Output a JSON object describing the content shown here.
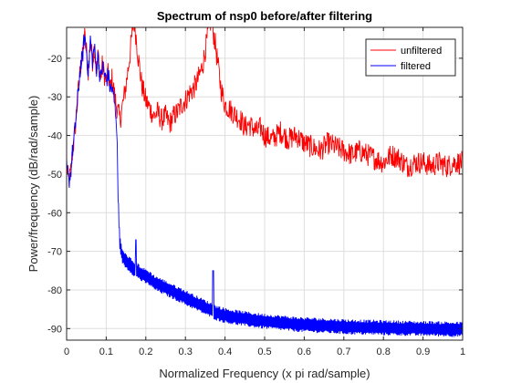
{
  "chart_data": {
    "type": "line",
    "title": "Spectrum of nsp0 before/after filtering",
    "xlabel": "Normalized Frequency (x pi rad/sample)",
    "ylabel": "Power/frequency (dB/rad/sample)",
    "xlim": [
      0,
      1
    ],
    "ylim": [
      -93,
      -12
    ],
    "xticks": [
      0,
      0.1,
      0.2,
      0.3,
      0.4,
      0.5,
      0.6,
      0.7,
      0.8,
      0.9,
      1
    ],
    "xtick_labels": [
      "0",
      "0.1",
      "0.2",
      "0.3",
      "0.4",
      "0.5",
      "0.6",
      "0.7",
      "0.8",
      "0.9",
      "1"
    ],
    "yticks": [
      -90,
      -80,
      -70,
      -60,
      -50,
      -40,
      -30,
      -20
    ],
    "ytick_labels": [
      "-90",
      "-80",
      "-70",
      "-60",
      "-50",
      "-40",
      "-30",
      "-20"
    ],
    "grid": true,
    "legend_position": "top-right",
    "series": [
      {
        "name": "unfiltered",
        "color": "#ff0000",
        "x": [
          0,
          0.005,
          0.01,
          0.015,
          0.02,
          0.025,
          0.03,
          0.035,
          0.04,
          0.045,
          0.05,
          0.055,
          0.06,
          0.065,
          0.07,
          0.075,
          0.08,
          0.085,
          0.09,
          0.095,
          0.1,
          0.105,
          0.11,
          0.115,
          0.12,
          0.125,
          0.13,
          0.135,
          0.14,
          0.145,
          0.15,
          0.155,
          0.16,
          0.165,
          0.17,
          0.175,
          0.18,
          0.185,
          0.19,
          0.195,
          0.2,
          0.21,
          0.22,
          0.23,
          0.24,
          0.25,
          0.26,
          0.27,
          0.28,
          0.29,
          0.3,
          0.31,
          0.32,
          0.33,
          0.34,
          0.345,
          0.35,
          0.355,
          0.36,
          0.365,
          0.37,
          0.375,
          0.38,
          0.385,
          0.39,
          0.395,
          0.4,
          0.41,
          0.42,
          0.43,
          0.44,
          0.45,
          0.46,
          0.47,
          0.48,
          0.49,
          0.5,
          0.52,
          0.54,
          0.56,
          0.58,
          0.6,
          0.62,
          0.64,
          0.66,
          0.68,
          0.7,
          0.72,
          0.74,
          0.76,
          0.78,
          0.8,
          0.82,
          0.84,
          0.86,
          0.88,
          0.9,
          0.92,
          0.94,
          0.96,
          0.98,
          1
        ],
        "y": [
          -48,
          -52,
          -50,
          -44,
          -40,
          -34,
          -28,
          -22,
          -20,
          -14,
          -18,
          -24,
          -15,
          -21,
          -17,
          -23,
          -19,
          -26,
          -22,
          -24,
          -26,
          -24,
          -28,
          -25,
          -29,
          -32,
          -34,
          -36,
          -33,
          -30,
          -27,
          -23,
          -19,
          -14,
          -10,
          -14,
          -19,
          -23,
          -27,
          -29,
          -31,
          -33,
          -35,
          -34,
          -36,
          -35,
          -37,
          -35,
          -34,
          -32,
          -31,
          -29,
          -28,
          -26,
          -23,
          -21,
          -18,
          -15,
          -12,
          -10,
          -13,
          -16,
          -20,
          -24,
          -28,
          -30,
          -32,
          -33,
          -34,
          -35,
          -36,
          -38,
          -37,
          -38,
          -39,
          -38,
          -40,
          -41,
          -39,
          -41,
          -40,
          -42,
          -43,
          -44,
          -42,
          -43,
          -44,
          -45,
          -44,
          -45,
          -46,
          -47,
          -45,
          -46,
          -48,
          -47,
          -47,
          -48,
          -47,
          -48,
          -47,
          -47
        ]
      },
      {
        "name": "filtered",
        "color": "#0000ff",
        "x": [
          0,
          0.005,
          0.01,
          0.015,
          0.02,
          0.025,
          0.03,
          0.035,
          0.04,
          0.045,
          0.05,
          0.055,
          0.06,
          0.065,
          0.07,
          0.075,
          0.08,
          0.085,
          0.09,
          0.095,
          0.1,
          0.105,
          0.11,
          0.115,
          0.12,
          0.122,
          0.124,
          0.126,
          0.128,
          0.13,
          0.132,
          0.134,
          0.136,
          0.138,
          0.14,
          0.145,
          0.15,
          0.155,
          0.16,
          0.165,
          0.17,
          0.175,
          0.18,
          0.185,
          0.19,
          0.2,
          0.21,
          0.22,
          0.23,
          0.24,
          0.25,
          0.26,
          0.27,
          0.28,
          0.29,
          0.3,
          0.31,
          0.32,
          0.33,
          0.34,
          0.35,
          0.36,
          0.365,
          0.37,
          0.375,
          0.38,
          0.39,
          0.4,
          0.42,
          0.44,
          0.46,
          0.48,
          0.5,
          0.52,
          0.54,
          0.56,
          0.58,
          0.6,
          0.62,
          0.64,
          0.66,
          0.68,
          0.7,
          0.72,
          0.74,
          0.76,
          0.78,
          0.8,
          0.82,
          0.84,
          0.86,
          0.88,
          0.9,
          0.92,
          0.94,
          0.96,
          0.98,
          1
        ],
        "y": [
          -48,
          -52,
          -50,
          -44,
          -40,
          -34,
          -28,
          -22,
          -20,
          -14,
          -18,
          -24,
          -15,
          -21,
          -17,
          -23,
          -19,
          -26,
          -22,
          -24,
          -26,
          -24,
          -28,
          -28,
          -31,
          -33,
          -34,
          -36,
          -45,
          -55,
          -62,
          -67,
          -69,
          -70,
          -71,
          -72,
          -72.5,
          -73,
          -73.5,
          -74,
          -74.5,
          -75,
          -75,
          -75.5,
          -76,
          -76.5,
          -77,
          -78,
          -78.5,
          -79,
          -79.5,
          -80,
          -80.5,
          -81,
          -81.5,
          -82,
          -82.5,
          -83,
          -83.5,
          -84,
          -84.5,
          -85,
          -85.2,
          -85.5,
          -85.8,
          -86,
          -86.3,
          -86.6,
          -87,
          -87.3,
          -87.6,
          -87.9,
          -88.1,
          -88.3,
          -88.5,
          -88.7,
          -88.9,
          -89,
          -89.1,
          -89.2,
          -89.3,
          -89.4,
          -89.5,
          -89.6,
          -89.6,
          -89.7,
          -89.7,
          -89.8,
          -89.8,
          -89.9,
          -89.9,
          -90,
          -90,
          -90,
          -90.1,
          -90.1,
          -90.2,
          -90.2
        ]
      }
    ],
    "annotations": [
      {
        "series": "filtered",
        "x": 0.175,
        "y": -67
      },
      {
        "series": "filtered",
        "x": 0.37,
        "y": -75
      }
    ]
  }
}
